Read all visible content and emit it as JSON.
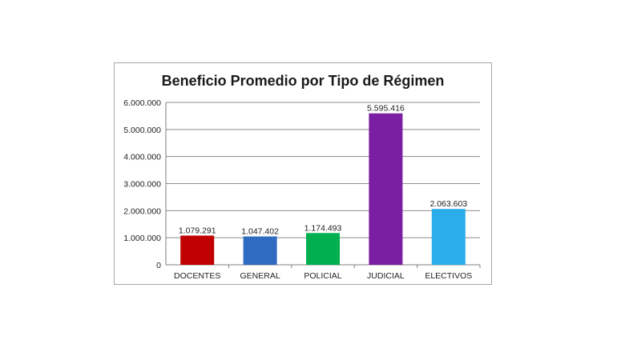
{
  "chart_data": {
    "type": "bar",
    "title": "Beneficio Promedio por Tipo de Régimen",
    "xlabel": "",
    "ylabel": "",
    "categories": [
      "DOCENTES",
      "GENERAL",
      "POLICIAL",
      "JUDICIAL",
      "ELECTIVOS"
    ],
    "values": [
      1079291,
      1047402,
      1174493,
      5595416,
      2063603
    ],
    "value_labels": [
      "1.079.291",
      "1.047.402",
      "1.174.493",
      "5.595.416",
      "2.063.603"
    ],
    "colors": [
      "#c00000",
      "#2e6bc1",
      "#00b050",
      "#7b1fa2",
      "#2bade9"
    ],
    "ylim": [
      0,
      6000000
    ],
    "yticks": [
      0,
      1000000,
      2000000,
      3000000,
      4000000,
      5000000,
      6000000
    ],
    "ytick_labels": [
      "0",
      "1.000.000",
      "2.000.000",
      "3.000.000",
      "4.000.000",
      "5.000.000",
      "6.000.000"
    ],
    "grid": true,
    "legend": "none"
  }
}
